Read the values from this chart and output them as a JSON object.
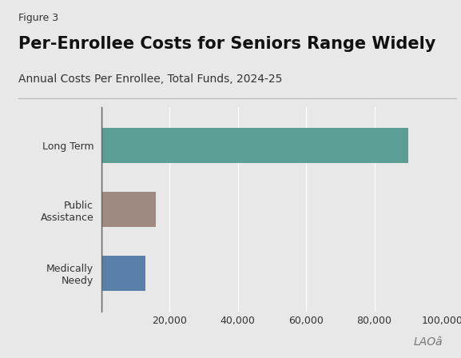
{
  "figure_label": "Figure 3",
  "title": "Per-Enrollee Costs for Seniors Range Widely",
  "subtitle": "Annual Costs Per Enrollee, Total Funds, 2024-25",
  "categories": [
    "Long Term",
    "Public\nAssistance",
    "Medically\nNeedy"
  ],
  "values": [
    90000,
    16000,
    13000
  ],
  "bar_colors": [
    "#5a9e96",
    "#9e8a80",
    "#5a7fa8"
  ],
  "background_color": "#e8e8e8",
  "xlim": [
    0,
    100000
  ],
  "xticks": [
    0,
    20000,
    40000,
    60000,
    80000,
    100000
  ],
  "xtick_labels": [
    "",
    "20,000",
    "40,000",
    "60,000",
    "80,000",
    "100,000"
  ],
  "bar_height": 0.55,
  "title_fontsize": 15,
  "subtitle_fontsize": 10,
  "figure_label_fontsize": 9,
  "tick_fontsize": 9,
  "ytick_fontsize": 9,
  "lao_watermark": "LAOâ",
  "title_color": "#111111",
  "text_color": "#333333",
  "grid_color": "#ffffff",
  "spine_color": "#666666",
  "separator_color": "#bbbbbb"
}
